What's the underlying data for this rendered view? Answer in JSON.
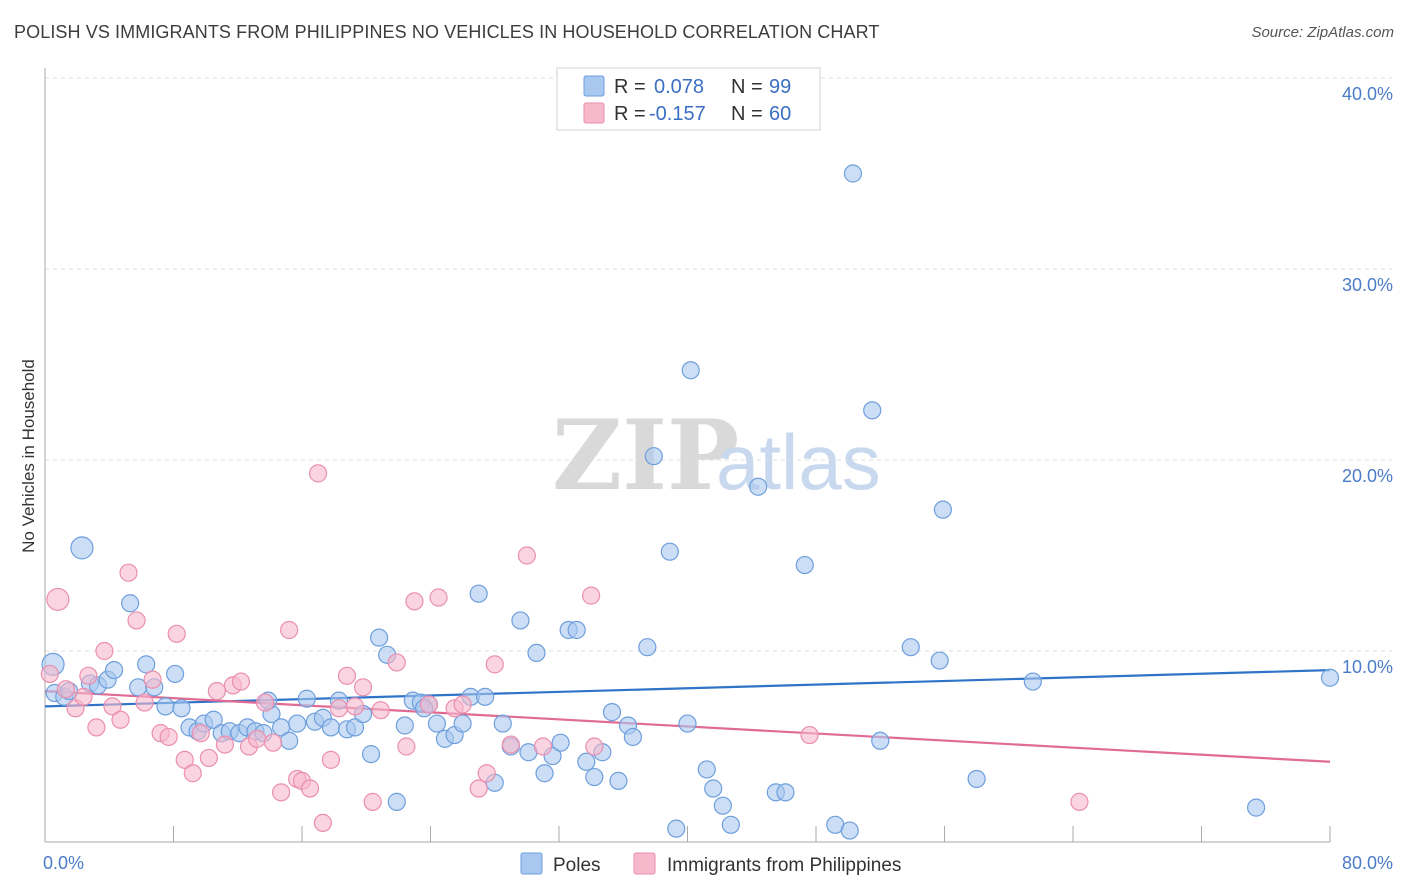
{
  "title": "POLISH VS IMMIGRANTS FROM PHILIPPINES NO VEHICLES IN HOUSEHOLD CORRELATION CHART",
  "source": "Source: ZipAtlas.com",
  "watermark": {
    "zip": "ZIP",
    "atlas": "atlas"
  },
  "colors": {
    "poles_fill": "#a8c8f0",
    "poles_stroke": "#6e9fdc",
    "poles_line": "#2f74c9",
    "phil_fill": "#f7b8cc",
    "phil_stroke": "#ea8fae",
    "phil_line": "#e06b93",
    "grid": "#dddddd",
    "axis_text": "#4a7cc7"
  },
  "legend_top": {
    "rows": [
      {
        "r_label": "R =",
        "r_value": "0.078",
        "n_label": "N =",
        "n_value": "99"
      },
      {
        "r_label": "R =",
        "r_value": "-0.157",
        "n_label": "N =",
        "n_value": "60"
      }
    ]
  },
  "chart_data": {
    "type": "scatter",
    "ylabel": "No Vehicles in Household",
    "xlim": [
      0,
      80
    ],
    "ylim": [
      0,
      40
    ],
    "x_ticks": [
      0,
      8,
      16,
      24,
      32,
      40,
      48,
      56,
      64,
      72,
      80
    ],
    "x_tick_labels": {
      "0": "0.0%",
      "80": "80.0%"
    },
    "y_ticks": [
      10,
      20,
      30,
      40
    ],
    "y_tick_labels": [
      "10.0%",
      "20.0%",
      "30.0%",
      "40.0%"
    ],
    "grid": true,
    "legend_placement": "bottom-center",
    "series": [
      {
        "name": "Poles",
        "trend": {
          "x": [
            0,
            80
          ],
          "y": [
            7.1,
            9.0
          ]
        },
        "points": [
          [
            0.5,
            9.3
          ],
          [
            0.6,
            7.8
          ],
          [
            1.2,
            7.6
          ],
          [
            1.5,
            7.9
          ],
          [
            2.3,
            15.4
          ],
          [
            2.8,
            8.3
          ],
          [
            3.3,
            8.2
          ],
          [
            3.9,
            8.5
          ],
          [
            4.3,
            9.0
          ],
          [
            5.3,
            12.5
          ],
          [
            5.8,
            8.1
          ],
          [
            6.3,
            9.3
          ],
          [
            6.8,
            8.1
          ],
          [
            7.5,
            7.1
          ],
          [
            8.1,
            8.8
          ],
          [
            8.5,
            7.0
          ],
          [
            9.0,
            6.0
          ],
          [
            9.5,
            5.8
          ],
          [
            9.9,
            6.2
          ],
          [
            10.5,
            6.4
          ],
          [
            11.0,
            5.7
          ],
          [
            11.5,
            5.8
          ],
          [
            12.1,
            5.7
          ],
          [
            12.6,
            6.0
          ],
          [
            13.1,
            5.8
          ],
          [
            13.6,
            5.7
          ],
          [
            14.1,
            6.7
          ],
          [
            14.7,
            6.0
          ],
          [
            15.2,
            5.3
          ],
          [
            15.7,
            6.2
          ],
          [
            16.3,
            7.5
          ],
          [
            16.8,
            6.3
          ],
          [
            17.3,
            6.5
          ],
          [
            17.8,
            6.0
          ],
          [
            18.3,
            7.4
          ],
          [
            18.8,
            5.9
          ],
          [
            19.3,
            6.0
          ],
          [
            19.8,
            6.7
          ],
          [
            20.3,
            4.6
          ],
          [
            20.8,
            10.7
          ],
          [
            21.3,
            9.8
          ],
          [
            21.9,
            2.1
          ],
          [
            22.4,
            6.1
          ],
          [
            22.9,
            7.4
          ],
          [
            23.4,
            7.3
          ],
          [
            23.9,
            7.2
          ],
          [
            24.4,
            6.2
          ],
          [
            24.9,
            5.4
          ],
          [
            25.5,
            5.6
          ],
          [
            26.0,
            6.2
          ],
          [
            26.5,
            7.6
          ],
          [
            27.0,
            13.0
          ],
          [
            27.4,
            7.6
          ],
          [
            28.0,
            3.1
          ],
          [
            28.5,
            6.2
          ],
          [
            29.0,
            5.0
          ],
          [
            29.6,
            11.6
          ],
          [
            30.1,
            4.7
          ],
          [
            30.6,
            9.9
          ],
          [
            31.1,
            3.6
          ],
          [
            31.6,
            4.5
          ],
          [
            32.1,
            5.2
          ],
          [
            32.6,
            11.1
          ],
          [
            33.1,
            11.1
          ],
          [
            33.7,
            4.2
          ],
          [
            34.2,
            3.4
          ],
          [
            34.7,
            4.7
          ],
          [
            35.3,
            6.8
          ],
          [
            35.7,
            3.2
          ],
          [
            36.3,
            6.1
          ],
          [
            36.6,
            5.5
          ],
          [
            37.5,
            10.2
          ],
          [
            37.9,
            20.2
          ],
          [
            38.9,
            15.2
          ],
          [
            39.3,
            0.7
          ],
          [
            40.0,
            6.2
          ],
          [
            40.2,
            24.7
          ],
          [
            41.2,
            3.8
          ],
          [
            41.6,
            2.8
          ],
          [
            42.2,
            1.9
          ],
          [
            42.7,
            0.9
          ],
          [
            44.4,
            18.6
          ],
          [
            45.5,
            2.6
          ],
          [
            46.1,
            2.6
          ],
          [
            47.3,
            14.5
          ],
          [
            49.2,
            0.9
          ],
          [
            50.3,
            35.0
          ],
          [
            51.5,
            22.6
          ],
          [
            52.0,
            5.3
          ],
          [
            53.9,
            10.2
          ],
          [
            55.7,
            9.5
          ],
          [
            55.9,
            17.4
          ],
          [
            58.0,
            3.3
          ],
          [
            61.5,
            8.4
          ],
          [
            75.4,
            1.8
          ],
          [
            80.0,
            8.6
          ],
          [
            50.1,
            0.6
          ],
          [
            13.9,
            7.4
          ],
          [
            23.6,
            7.0
          ]
        ]
      },
      {
        "name": "Immigrants from Philippines",
        "trend": {
          "x": [
            0,
            80
          ],
          "y": [
            7.9,
            4.2
          ]
        },
        "points": [
          [
            0.3,
            8.8
          ],
          [
            0.8,
            12.7
          ],
          [
            1.3,
            8.0
          ],
          [
            1.9,
            7.0
          ],
          [
            2.4,
            7.6
          ],
          [
            2.7,
            8.7
          ],
          [
            3.2,
            6.0
          ],
          [
            3.7,
            10.0
          ],
          [
            4.2,
            7.1
          ],
          [
            4.7,
            6.4
          ],
          [
            5.2,
            14.1
          ],
          [
            5.7,
            11.6
          ],
          [
            6.2,
            7.3
          ],
          [
            6.7,
            8.5
          ],
          [
            7.2,
            5.7
          ],
          [
            7.7,
            5.5
          ],
          [
            8.2,
            10.9
          ],
          [
            8.7,
            4.3
          ],
          [
            9.2,
            3.6
          ],
          [
            9.7,
            5.7
          ],
          [
            10.2,
            4.4
          ],
          [
            10.7,
            7.9
          ],
          [
            11.2,
            5.1
          ],
          [
            11.7,
            8.2
          ],
          [
            12.2,
            8.4
          ],
          [
            12.7,
            5.0
          ],
          [
            13.2,
            5.4
          ],
          [
            13.7,
            7.3
          ],
          [
            14.2,
            5.2
          ],
          [
            14.7,
            2.6
          ],
          [
            15.2,
            11.1
          ],
          [
            15.7,
            3.3
          ],
          [
            16.0,
            3.2
          ],
          [
            16.5,
            2.8
          ],
          [
            17.0,
            19.3
          ],
          [
            17.3,
            1.0
          ],
          [
            17.8,
            4.3
          ],
          [
            18.3,
            7.0
          ],
          [
            18.8,
            8.7
          ],
          [
            19.3,
            7.1
          ],
          [
            19.8,
            8.1
          ],
          [
            20.4,
            2.1
          ],
          [
            20.9,
            6.9
          ],
          [
            21.9,
            9.4
          ],
          [
            22.5,
            5.0
          ],
          [
            23.0,
            12.6
          ],
          [
            23.9,
            7.2
          ],
          [
            24.5,
            12.8
          ],
          [
            25.5,
            7.0
          ],
          [
            26.0,
            7.2
          ],
          [
            27.0,
            2.8
          ],
          [
            27.5,
            3.6
          ],
          [
            28.0,
            9.3
          ],
          [
            29.0,
            5.1
          ],
          [
            30.0,
            15.0
          ],
          [
            31.0,
            5.0
          ],
          [
            34.0,
            12.9
          ],
          [
            34.2,
            5.0
          ],
          [
            47.6,
            5.6
          ],
          [
            64.4,
            2.1
          ]
        ]
      }
    ]
  },
  "legend_bottom": [
    {
      "label": "Poles"
    },
    {
      "label": "Immigrants from Philippines"
    }
  ]
}
